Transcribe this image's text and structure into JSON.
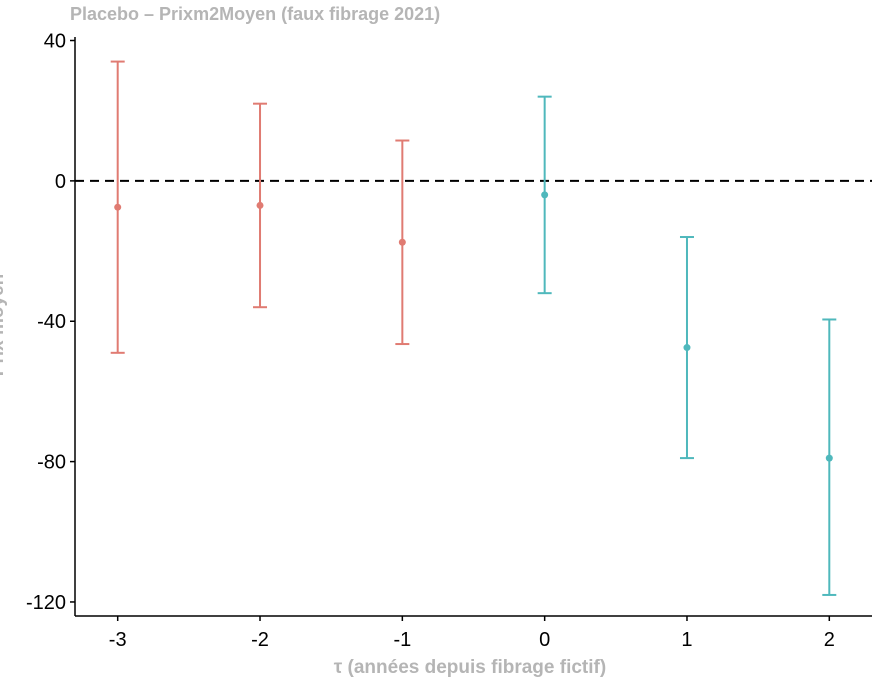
{
  "chart_data": {
    "type": "scatter",
    "subtype": "point-errorbar",
    "title": "Placebo – Prixm2Moyen (faux fibrage 2021)",
    "xlabel": "τ (années depuis fibrage fictif)",
    "ylabel": "Prix moyen",
    "x_ticks": [
      "-3",
      "-2",
      "-1",
      "0",
      "1",
      "2"
    ],
    "y_ticks": [
      "40",
      "0",
      "-40",
      "-80",
      "-120"
    ],
    "xlim": [
      -3.3,
      2.3
    ],
    "ylim": [
      -124,
      41
    ],
    "reference_line": {
      "y": 0,
      "style": "dashed"
    },
    "grid": false,
    "legend": "none",
    "colors": {
      "pre": "#e07b72",
      "post": "#4fb8bc"
    },
    "points": [
      {
        "x": -3,
        "y": -7.5,
        "ymin": -49,
        "ymax": 34,
        "group": "pre"
      },
      {
        "x": -2,
        "y": -7,
        "ymin": -36,
        "ymax": 22,
        "group": "pre"
      },
      {
        "x": -1,
        "y": -17.5,
        "ymin": -46.5,
        "ymax": 11.5,
        "group": "pre"
      },
      {
        "x": 0,
        "y": -4,
        "ymin": -32,
        "ymax": 24,
        "group": "post"
      },
      {
        "x": 1,
        "y": -47.5,
        "ymin": -79,
        "ymax": -16,
        "group": "post"
      },
      {
        "x": 2,
        "y": -79,
        "ymin": -118,
        "ymax": -39.5,
        "group": "post"
      }
    ]
  }
}
